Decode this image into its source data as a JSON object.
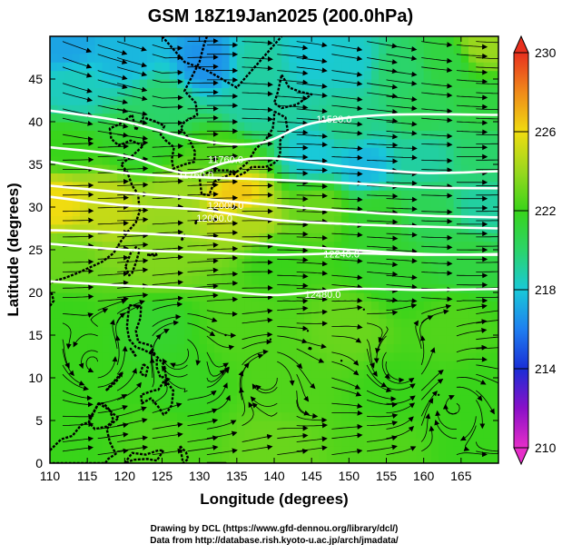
{
  "chart_data": {
    "type": "heatmap",
    "title": "GSM 18Z19Jan2025 (200.0hPa)",
    "xlabel": "Longitude (degrees)",
    "ylabel": "Latitude  (degrees)",
    "xlim": [
      110,
      170
    ],
    "ylim": [
      0,
      50
    ],
    "xticks": [
      110,
      115,
      120,
      125,
      130,
      135,
      140,
      145,
      150,
      155,
      160,
      165
    ],
    "yticks": [
      0,
      5,
      10,
      15,
      20,
      25,
      30,
      35,
      40,
      45
    ],
    "colorbar": {
      "min": 210,
      "max": 230,
      "ticks": [
        210,
        214,
        218,
        222,
        226,
        230
      ],
      "stops": [
        {
          "value": 210,
          "color": "#e62ec9"
        },
        {
          "value": 212,
          "color": "#8a10c8"
        },
        {
          "value": 214,
          "color": "#1a2ed6"
        },
        {
          "value": 216,
          "color": "#1f7ff0"
        },
        {
          "value": 218,
          "color": "#19c9d8"
        },
        {
          "value": 220,
          "color": "#2bd46a"
        },
        {
          "value": 222,
          "color": "#39d41a"
        },
        {
          "value": 224,
          "color": "#9ad81e"
        },
        {
          "value": 226,
          "color": "#f0dc10"
        },
        {
          "value": 228,
          "color": "#f08a1a"
        },
        {
          "value": 230,
          "color": "#e8301e"
        }
      ]
    },
    "field_points": [
      {
        "lon": 112,
        "lat": 49,
        "value": 217
      },
      {
        "lon": 120,
        "lat": 48,
        "value": 217.5
      },
      {
        "lon": 131,
        "lat": 47,
        "value": 216.5
      },
      {
        "lon": 138,
        "lat": 47,
        "value": 219
      },
      {
        "lon": 145,
        "lat": 48,
        "value": 218
      },
      {
        "lon": 150,
        "lat": 47,
        "value": 218.2
      },
      {
        "lon": 157,
        "lat": 46,
        "value": 220
      },
      {
        "lon": 163,
        "lat": 47,
        "value": 221
      },
      {
        "lon": 168,
        "lat": 49,
        "value": 224
      },
      {
        "lon": 113,
        "lat": 44,
        "value": 218.5
      },
      {
        "lon": 125,
        "lat": 42,
        "value": 220
      },
      {
        "lon": 137,
        "lat": 42,
        "value": 219
      },
      {
        "lon": 150,
        "lat": 40,
        "value": 219.5
      },
      {
        "lon": 160,
        "lat": 41,
        "value": 220.5
      },
      {
        "lon": 168,
        "lat": 42,
        "value": 221
      },
      {
        "lon": 112,
        "lat": 37,
        "value": 222
      },
      {
        "lon": 122,
        "lat": 37,
        "value": 221.5
      },
      {
        "lon": 133,
        "lat": 36,
        "value": 222.5
      },
      {
        "lon": 145,
        "lat": 36,
        "value": 218
      },
      {
        "lon": 152,
        "lat": 35,
        "value": 217.5
      },
      {
        "lon": 160,
        "lat": 36,
        "value": 219
      },
      {
        "lon": 168,
        "lat": 36,
        "value": 220
      },
      {
        "lon": 111,
        "lat": 30.5,
        "value": 226
      },
      {
        "lon": 118,
        "lat": 30,
        "value": 225
      },
      {
        "lon": 126,
        "lat": 31,
        "value": 224
      },
      {
        "lon": 135,
        "lat": 31.5,
        "value": 226.5
      },
      {
        "lon": 137,
        "lat": 28.5,
        "value": 224.5
      },
      {
        "lon": 146,
        "lat": 30,
        "value": 223
      },
      {
        "lon": 154,
        "lat": 29,
        "value": 221.5
      },
      {
        "lon": 161,
        "lat": 29,
        "value": 220.5
      },
      {
        "lon": 168,
        "lat": 30,
        "value": 219
      },
      {
        "lon": 112,
        "lat": 24,
        "value": 223
      },
      {
        "lon": 124,
        "lat": 24,
        "value": 223.5
      },
      {
        "lon": 140,
        "lat": 24,
        "value": 222
      },
      {
        "lon": 156,
        "lat": 23,
        "value": 221.5
      },
      {
        "lon": 166,
        "lat": 24,
        "value": 221
      },
      {
        "lon": 112,
        "lat": 17,
        "value": 222
      },
      {
        "lon": 124,
        "lat": 16,
        "value": 221.5
      },
      {
        "lon": 136,
        "lat": 16,
        "value": 222.5
      },
      {
        "lon": 150,
        "lat": 16,
        "value": 223
      },
      {
        "lon": 164,
        "lat": 16,
        "value": 222.5
      },
      {
        "lon": 114,
        "lat": 9,
        "value": 222
      },
      {
        "lon": 128,
        "lat": 9,
        "value": 221.8
      },
      {
        "lon": 142,
        "lat": 9,
        "value": 222.5
      },
      {
        "lon": 156,
        "lat": 8,
        "value": 222
      },
      {
        "lon": 168,
        "lat": 8,
        "value": 222
      },
      {
        "lon": 112,
        "lat": 2,
        "value": 222
      },
      {
        "lon": 125,
        "lat": 2,
        "value": 222.5
      },
      {
        "lon": 140,
        "lat": 2,
        "value": 223
      },
      {
        "lon": 155,
        "lat": 2,
        "value": 222.5
      },
      {
        "lon": 167,
        "lat": 2,
        "value": 222
      }
    ],
    "contours": [
      {
        "label": "11520.0",
        "points": [
          [
            110,
            41.3
          ],
          [
            120,
            40
          ],
          [
            130,
            37.8
          ],
          [
            138,
            37.5
          ],
          [
            145,
            39.8
          ],
          [
            155,
            40.8
          ],
          [
            170,
            40.8
          ]
        ]
      },
      {
        "label": "11760.0",
        "points": [
          [
            110,
            37
          ],
          [
            120,
            36
          ],
          [
            128,
            34
          ],
          [
            134,
            35.3
          ],
          [
            140,
            35.7
          ],
          [
            150,
            34.7
          ],
          [
            160,
            34
          ],
          [
            170,
            34.2
          ]
        ]
      },
      {
        "label": "",
        "points": [
          [
            110,
            35.3
          ],
          [
            120,
            34
          ],
          [
            130,
            33.5
          ],
          [
            140,
            33.2
          ],
          [
            150,
            32.8
          ],
          [
            160,
            32.3
          ],
          [
            170,
            32.2
          ]
        ]
      },
      {
        "label": "12000.0",
        "points": [
          [
            110,
            32.5
          ],
          [
            120,
            31.7
          ],
          [
            130,
            31
          ],
          [
            140,
            30.2
          ],
          [
            150,
            29.5
          ],
          [
            160,
            29
          ],
          [
            170,
            28.8
          ]
        ]
      },
      {
        "label": "",
        "points": [
          [
            110,
            31.2
          ],
          [
            120,
            30.2
          ],
          [
            130,
            29.7
          ],
          [
            140,
            28.5
          ],
          [
            150,
            28
          ],
          [
            160,
            27.7
          ],
          [
            170,
            27.5
          ]
        ]
      },
      {
        "label": "12240.0",
        "points": [
          [
            110,
            27.3
          ],
          [
            120,
            27
          ],
          [
            130,
            26.5
          ],
          [
            140,
            25.6
          ],
          [
            150,
            25
          ],
          [
            160,
            24.5
          ],
          [
            170,
            24.4
          ]
        ]
      },
      {
        "label": "12240.0",
        "points": [
          [
            110,
            25.7
          ],
          [
            120,
            25
          ],
          [
            130,
            24.7
          ],
          [
            140,
            24.4
          ],
          [
            150,
            24.6
          ],
          [
            160,
            24.4
          ],
          [
            170,
            24.5
          ]
        ]
      },
      {
        "label": "12480.0",
        "points": [
          [
            110,
            21.3
          ],
          [
            120,
            20.8
          ],
          [
            130,
            20.4
          ],
          [
            140,
            19.7
          ],
          [
            150,
            20.4
          ],
          [
            160,
            20.3
          ],
          [
            170,
            20.4
          ]
        ]
      }
    ],
    "contour_labels": [
      {
        "text": "11520.0",
        "lon": 148,
        "lat": 40.3
      },
      {
        "text": "11760.0",
        "lon": 133.5,
        "lat": 35.6
      },
      {
        "text": "11760.0",
        "lon": 129.5,
        "lat": 33.8
      },
      {
        "text": "12000.0",
        "lon": 133.5,
        "lat": 30.2
      },
      {
        "text": "12000.0",
        "lon": 132,
        "lat": 28.7
      },
      {
        "text": "12240.0",
        "lon": 149,
        "lat": 24.5
      },
      {
        "text": "12480.0",
        "lon": 146.5,
        "lat": 19.8
      }
    ],
    "vortex_centers": [
      {
        "lon": 116,
        "lat": 11.5,
        "sense": "ccw"
      },
      {
        "lon": 139,
        "lat": 10.5,
        "sense": "cw"
      },
      {
        "lon": 157,
        "lat": 11,
        "sense": "ccw"
      },
      {
        "lon": 164,
        "lat": 7,
        "sense": "cw"
      },
      {
        "lon": 127,
        "lat": 13.5,
        "sense": "cw"
      }
    ]
  },
  "footer": {
    "line1": "Drawing by DCL (https://www.gfd-dennou.org/library/dcl/)",
    "line2": "Data from http://database.rish.kyoto-u.ac.jp/arch/jmadata/"
  },
  "colors": {
    "land_outline": "#000000",
    "contour": "#ffffff",
    "streamline": "#000000"
  }
}
